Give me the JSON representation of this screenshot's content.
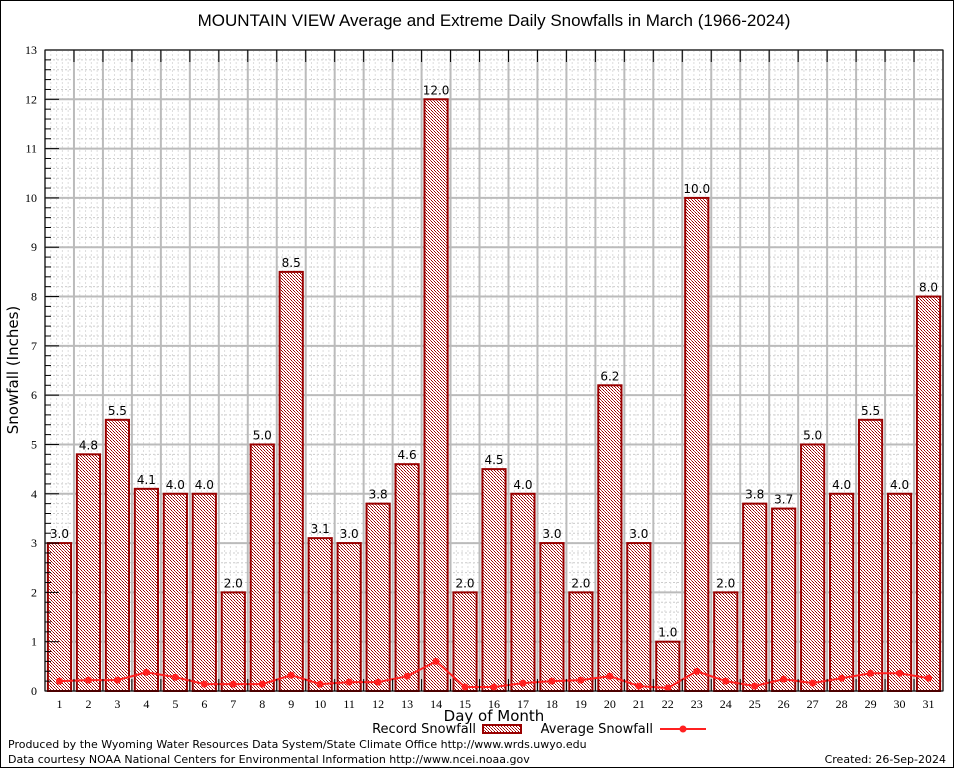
{
  "chart_data": {
    "type": "bar",
    "title": "MOUNTAIN VIEW Average and Extreme Daily Snowfalls in March (1966-2024)",
    "xlabel": "Day of Month",
    "ylabel": "Snowfall (Inches)",
    "ylim": [
      0,
      13
    ],
    "yticks": [
      "0",
      "1",
      "2",
      "3",
      "4",
      "5",
      "6",
      "7",
      "8",
      "9",
      "10",
      "11",
      "12",
      "13"
    ],
    "categories": [
      "1",
      "2",
      "3",
      "4",
      "5",
      "6",
      "7",
      "8",
      "9",
      "10",
      "11",
      "12",
      "13",
      "14",
      "15",
      "16",
      "17",
      "18",
      "19",
      "20",
      "21",
      "22",
      "23",
      "24",
      "25",
      "26",
      "27",
      "28",
      "29",
      "30",
      "31"
    ],
    "grid": true,
    "legend_position": "bottom",
    "series": [
      {
        "name": "Record Snowfall",
        "kind": "bar",
        "color": "#990000",
        "values": [
          3.0,
          4.8,
          5.5,
          4.1,
          4.0,
          4.0,
          2.0,
          5.0,
          8.5,
          3.1,
          3.0,
          3.8,
          4.6,
          12.0,
          2.0,
          4.5,
          4.0,
          3.0,
          2.0,
          6.2,
          3.0,
          1.0,
          10.0,
          2.0,
          3.8,
          3.7,
          5.0,
          4.0,
          5.5,
          4.0,
          8.0
        ],
        "labels": [
          "3.0",
          "4.8",
          "5.5",
          "4.1",
          "4.0",
          "4.0",
          "2.0",
          "5.0",
          "8.5",
          "3.1",
          "3.0",
          "3.8",
          "4.6",
          "12.0",
          "2.0",
          "4.5",
          "4.0",
          "3.0",
          "2.0",
          "6.2",
          "3.0",
          "1.0",
          "10.0",
          "2.0",
          "3.8",
          "3.7",
          "5.0",
          "4.0",
          "5.5",
          "4.0",
          "8.0"
        ]
      },
      {
        "name": "Average Snowfall",
        "kind": "line",
        "color": "#ff2020",
        "values": [
          0.2,
          0.22,
          0.22,
          0.38,
          0.28,
          0.14,
          0.14,
          0.14,
          0.32,
          0.14,
          0.18,
          0.18,
          0.3,
          0.6,
          0.08,
          0.08,
          0.16,
          0.2,
          0.22,
          0.3,
          0.1,
          0.06,
          0.4,
          0.2,
          0.1,
          0.24,
          0.16,
          0.26,
          0.36,
          0.36,
          0.26
        ]
      }
    ]
  },
  "footer": {
    "line1": "Produced by the Wyoming Water Resources Data System/State Climate Office http://www.wrds.uwyo.edu",
    "line2": "Data courtesy NOAA National Centers for Environmental Information http://www.ncei.noaa.gov",
    "created": "Created: 26-Sep-2024"
  }
}
